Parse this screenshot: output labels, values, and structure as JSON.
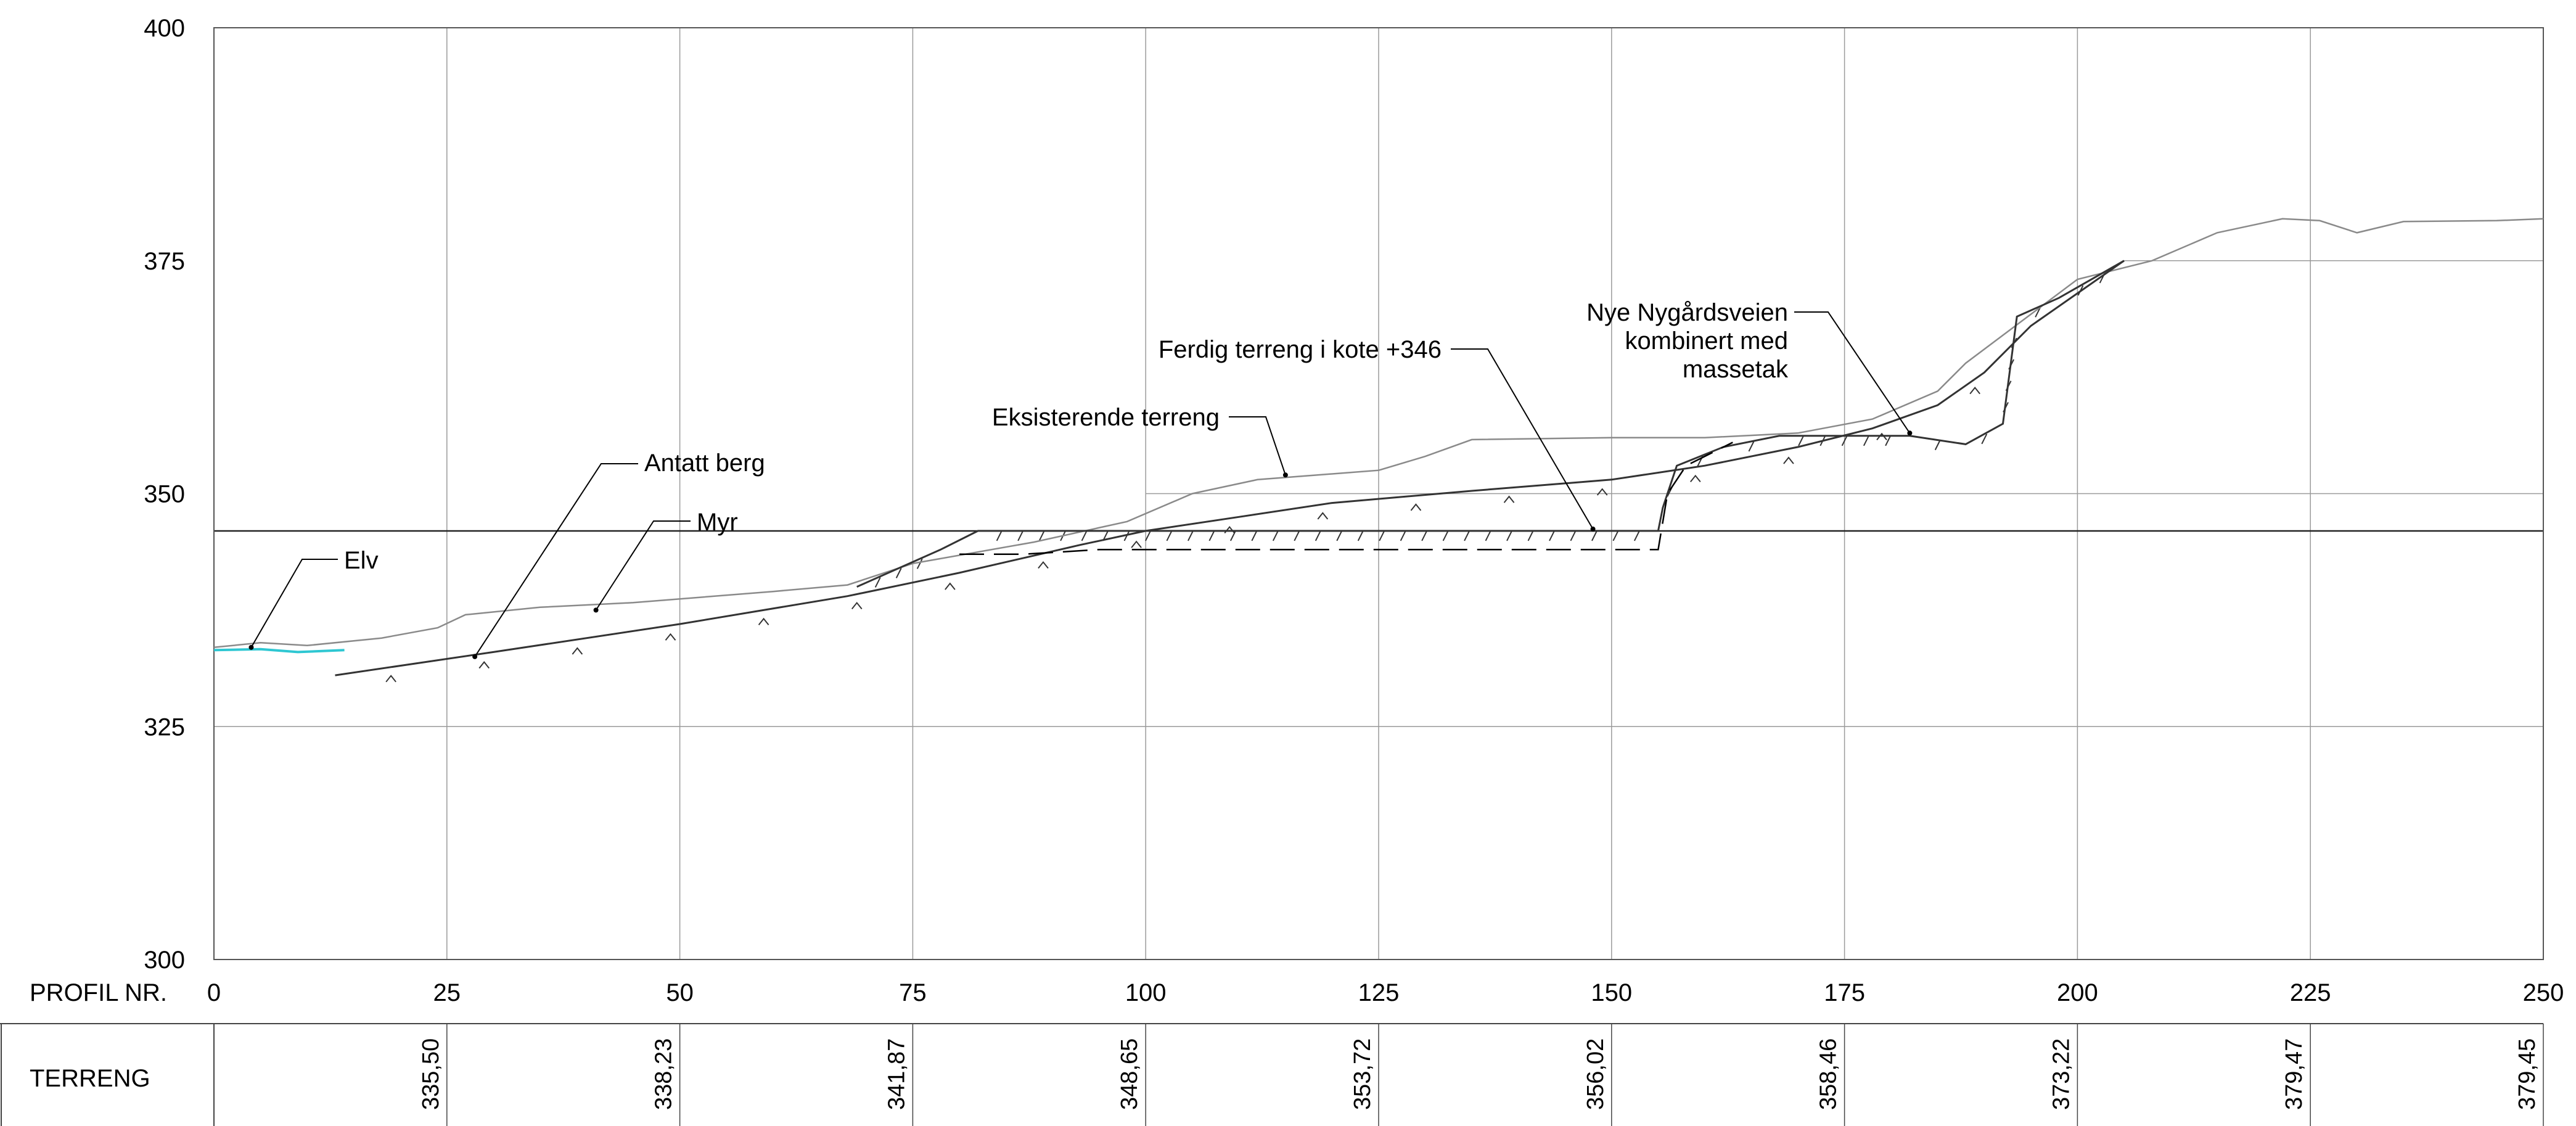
{
  "chart_data": {
    "type": "line",
    "title": "",
    "xlabel": "PROFIL NR.",
    "ylabel": "",
    "xlim": [
      0,
      250
    ],
    "ylim": [
      300,
      400
    ],
    "x_ticks": [
      "0",
      "25",
      "50",
      "75",
      "100",
      "125",
      "150",
      "175",
      "200",
      "225",
      "250"
    ],
    "y_ticks": [
      "300",
      "325",
      "350",
      "375",
      "400"
    ],
    "reference_levels": [
      346,
      350,
      375
    ],
    "series": [
      {
        "key": "existing_terrain",
        "color": "#8a8a8a",
        "points": [
          [
            0,
            333.5
          ],
          [
            5,
            334
          ],
          [
            10,
            333.7
          ],
          [
            18,
            334.5
          ],
          [
            24,
            335.6
          ],
          [
            27,
            337
          ],
          [
            35,
            337.8
          ],
          [
            45,
            338.3
          ],
          [
            60,
            339.5
          ],
          [
            68,
            340.2
          ],
          [
            75,
            342.5
          ],
          [
            88,
            344.8
          ],
          [
            98,
            347
          ],
          [
            105,
            350
          ],
          [
            112,
            351.5
          ],
          [
            125,
            352.5
          ],
          [
            130,
            354
          ],
          [
            135,
            355.8
          ],
          [
            150,
            356
          ],
          [
            160,
            356
          ],
          [
            170,
            356.5
          ],
          [
            178,
            358
          ],
          [
            185,
            361
          ],
          [
            188,
            364
          ],
          [
            192,
            367
          ],
          [
            200,
            373
          ],
          [
            208,
            375
          ],
          [
            215,
            378
          ],
          [
            222,
            379.5
          ],
          [
            226,
            379.3
          ],
          [
            230,
            378
          ],
          [
            235,
            379.2
          ],
          [
            245,
            379.3
          ],
          [
            250,
            379.5
          ]
        ]
      },
      {
        "key": "rock_line",
        "color": "#333333",
        "points": [
          [
            13,
            330.5
          ],
          [
            30,
            333
          ],
          [
            50,
            336
          ],
          [
            68,
            339
          ],
          [
            80,
            341.5
          ],
          [
            93,
            344.5
          ],
          [
            100,
            346
          ],
          [
            110,
            347.5
          ],
          [
            120,
            349
          ],
          [
            135,
            350.3
          ],
          [
            150,
            351.5
          ],
          [
            160,
            353
          ],
          [
            170,
            355
          ],
          [
            178,
            357
          ],
          [
            185,
            359.5
          ],
          [
            190,
            363
          ],
          [
            195,
            368
          ],
          [
            200,
            371.5
          ],
          [
            205,
            375
          ]
        ]
      },
      {
        "key": "finished_terrain_346",
        "color": "#333333",
        "points": [
          [
            69,
            340
          ],
          [
            78,
            344
          ],
          [
            82,
            346
          ],
          [
            155,
            346
          ],
          [
            155.5,
            348.5
          ],
          [
            157,
            353
          ],
          [
            162,
            355
          ],
          [
            168,
            356.2
          ],
          [
            182,
            356.2
          ],
          [
            188,
            355.3
          ],
          [
            192,
            357.5
          ],
          [
            193.5,
            369
          ],
          [
            198,
            371
          ],
          [
            205,
            375
          ]
        ]
      },
      {
        "key": "excavation_dashed",
        "color": "#000000",
        "points": [
          [
            80,
            343.5
          ],
          [
            87,
            343.5
          ],
          [
            95,
            344
          ],
          [
            155,
            344
          ],
          [
            156,
            350
          ],
          [
            158,
            353
          ],
          [
            163,
            355.5
          ]
        ]
      },
      {
        "key": "river",
        "color": "#2ec7d2",
        "points": [
          [
            0,
            333.2
          ],
          [
            5,
            333.3
          ],
          [
            9,
            333
          ],
          [
            14,
            333.2
          ]
        ]
      }
    ],
    "terrain_row": [
      {
        "x": 25,
        "value": "335,50"
      },
      {
        "x": 50,
        "value": "338,23"
      },
      {
        "x": 75,
        "value": "341,87"
      },
      {
        "x": 100,
        "value": "348,65"
      },
      {
        "x": 125,
        "value": "353,72"
      },
      {
        "x": 150,
        "value": "356,02"
      },
      {
        "x": 175,
        "value": "358,46"
      },
      {
        "x": 200,
        "value": "373,22"
      },
      {
        "x": 225,
        "value": "379,47"
      },
      {
        "x": 250,
        "value": "379,45"
      }
    ],
    "annotations": [
      {
        "key": "elv",
        "lines": [
          "Elv"
        ],
        "target": [
          4,
          333.5
        ]
      },
      {
        "key": "antatt_berg",
        "lines": [
          "Antatt berg"
        ],
        "target": [
          28,
          332.5
        ]
      },
      {
        "key": "myr",
        "lines": [
          "Myr"
        ],
        "target": [
          41,
          337.5
        ]
      },
      {
        "key": "eksisterende",
        "lines": [
          "Eksisterende terreng"
        ],
        "target": [
          115,
          352
        ]
      },
      {
        "key": "ferdig",
        "lines": [
          "Ferdig terreng i kote +346"
        ],
        "target": [
          148,
          346.2
        ]
      },
      {
        "key": "nye",
        "lines": [
          "Nye Nygårdsveien",
          "kombinert med",
          "massetak"
        ],
        "target": [
          182,
          356.5
        ]
      }
    ]
  },
  "table": {
    "row1_label": "PROFIL NR.",
    "row2_label": "TERRENG"
  }
}
